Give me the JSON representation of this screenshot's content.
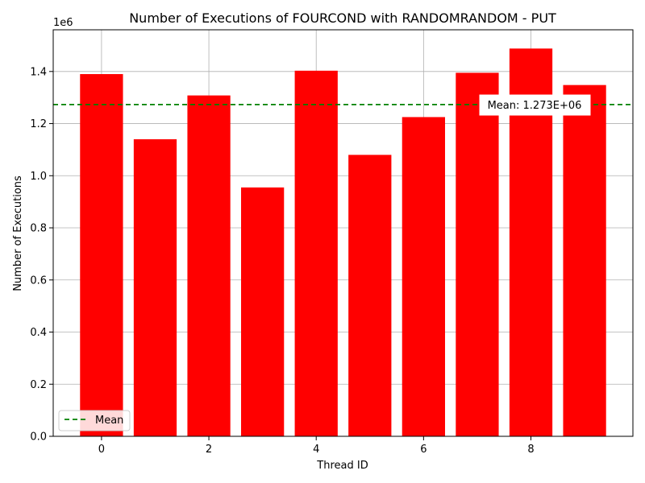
{
  "chart_data": {
    "type": "bar",
    "title": "Number of Executions of FOURCOND with RANDOMRANDOM - PUT",
    "xlabel": "Thread ID",
    "ylabel": "Number of Executions",
    "y_offset_label": "1e6",
    "x": [
      0,
      1,
      2,
      3,
      4,
      5,
      6,
      7,
      8,
      9
    ],
    "values": [
      1390000,
      1140000,
      1308000,
      955000,
      1403000,
      1080000,
      1225000,
      1395000,
      1488000,
      1348000
    ],
    "xlim": [
      -0.9,
      9.9
    ],
    "ylim": [
      0,
      1560000
    ],
    "x_ticks": [
      0,
      2,
      4,
      6,
      8
    ],
    "x_tick_labels": [
      "0",
      "2",
      "4",
      "6",
      "8"
    ],
    "y_ticks": [
      0,
      200000,
      400000,
      600000,
      800000,
      1000000,
      1200000,
      1400000
    ],
    "y_tick_labels": [
      "0.0",
      "0.2",
      "0.4",
      "0.6",
      "0.8",
      "1.0",
      "1.2",
      "1.4"
    ],
    "mean": 1273000,
    "mean_annotation": "Mean: 1.273E+06",
    "legend": {
      "entries": [
        "Mean"
      ],
      "placement": "lower-left"
    },
    "grid": true,
    "colors": {
      "bar": "#ff0000",
      "mean_line": "#008000",
      "grid": "#b0b0b0"
    }
  }
}
